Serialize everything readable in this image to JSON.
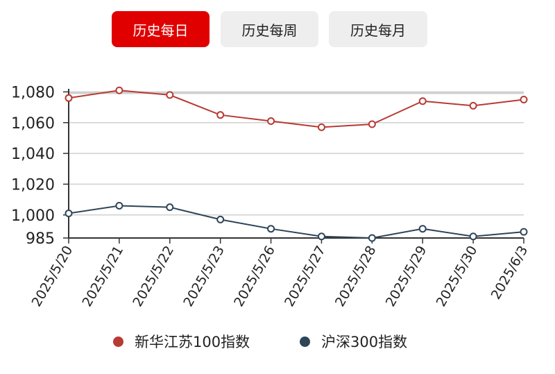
{
  "tabs": [
    {
      "label": "历史每日",
      "active": true
    },
    {
      "label": "历史每周",
      "active": false
    },
    {
      "label": "历史每月",
      "active": false
    }
  ],
  "colors": {
    "accent": "#e00000",
    "series_0": "#b73a33",
    "series_1": "#2e4558"
  },
  "chart_data": {
    "type": "line",
    "title": "",
    "xlabel": "",
    "ylabel": "",
    "categories": [
      "2025/5/20",
      "2025/5/21",
      "2025/5/22",
      "2025/5/23",
      "2025/5/26",
      "2025/5/27",
      "2025/5/28",
      "2025/5/29",
      "2025/5/30",
      "2025/6/3"
    ],
    "ylim": [
      985,
      1082
    ],
    "yticks": [
      1080,
      1060,
      1040,
      1020,
      1000,
      985
    ],
    "ytick_labels": [
      "1,080",
      "1,060",
      "1,040",
      "1,020",
      "1,000",
      "985"
    ],
    "grid": true,
    "legend_position": "bottom",
    "series": [
      {
        "name": "新华江苏100指数",
        "color": "#b73a33",
        "values": [
          1076,
          1081,
          1078,
          1065,
          1061,
          1057,
          1059,
          1074,
          1071,
          1075
        ]
      },
      {
        "name": "沪深300指数",
        "color": "#2e4558",
        "values": [
          1001,
          1006,
          1005,
          997,
          991,
          986,
          985,
          991,
          986,
          989
        ]
      }
    ]
  }
}
